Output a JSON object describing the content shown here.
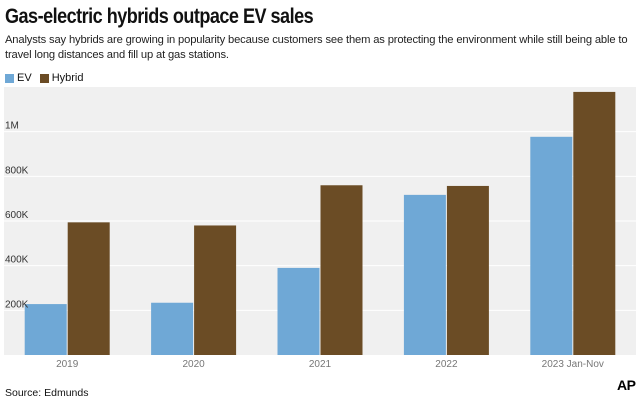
{
  "header": {
    "title": "Gas-electric hybrids outpace EV sales",
    "subtitle": "Analysts say hybrids are growing in popularity because customers see them as protecting the environment while still being able to travel long distances and fill up at gas stations."
  },
  "footer": {
    "source": "Source: Edmunds",
    "logo": "AP"
  },
  "colors": {
    "ev": "#6fa8d6",
    "hybrid": "#6b4c25",
    "plot_bg": "#f0f0f0",
    "grid": "#ffffff"
  },
  "chart_data": {
    "type": "bar",
    "title": "Gas-electric hybrids outpace EV sales",
    "categories": [
      "2019",
      "2020",
      "2021",
      "2022",
      "2023 Jan-Nov"
    ],
    "series": [
      {
        "name": "EV",
        "values": [
          228000,
          234000,
          390000,
          717000,
          977000
        ]
      },
      {
        "name": "Hybrid",
        "values": [
          594000,
          580000,
          760000,
          757000,
          1178000
        ]
      }
    ],
    "ylim": [
      0,
      1200000
    ],
    "yticks": [
      {
        "value": 200000,
        "label": "200K"
      },
      {
        "value": 400000,
        "label": "400K"
      },
      {
        "value": 600000,
        "label": "600K"
      },
      {
        "value": 800000,
        "label": "800K"
      },
      {
        "value": 1000000,
        "label": "1M"
      }
    ],
    "grid": true,
    "legend": "top-left",
    "xlabel": "",
    "ylabel": ""
  }
}
